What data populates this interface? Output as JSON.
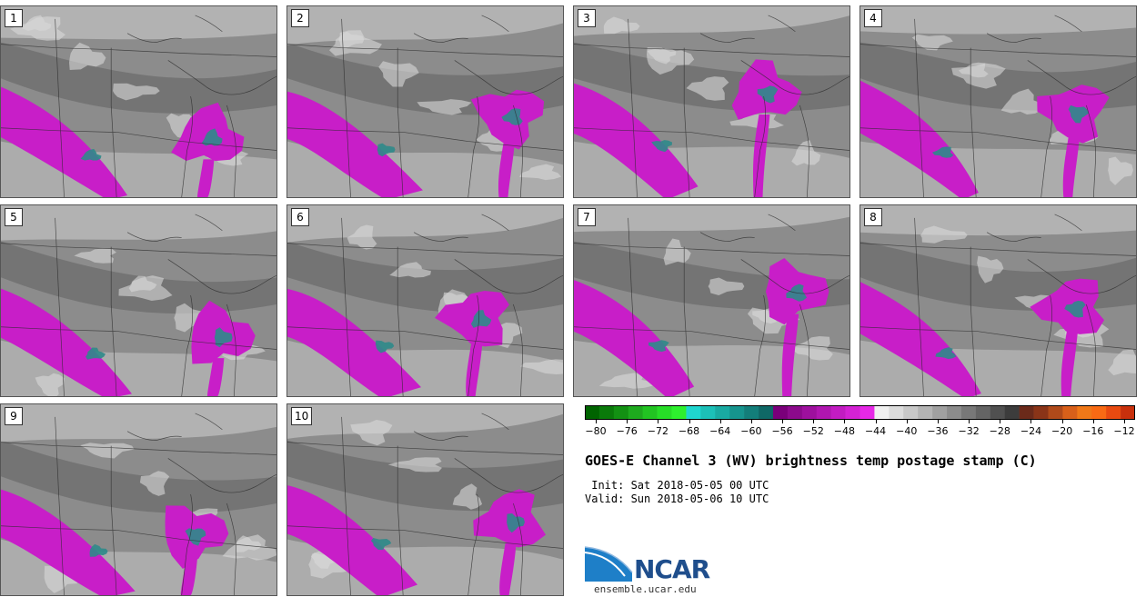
{
  "panels": [
    {
      "label": "1"
    },
    {
      "label": "2"
    },
    {
      "label": "3"
    },
    {
      "label": "4"
    },
    {
      "label": "5"
    },
    {
      "label": "6"
    },
    {
      "label": "7"
    },
    {
      "label": "8"
    },
    {
      "label": "9"
    },
    {
      "label": "10"
    }
  ],
  "colorbar": {
    "ticks": [
      "−80",
      "−76",
      "−72",
      "−68",
      "−64",
      "−60",
      "−56",
      "−52",
      "−48",
      "−44",
      "−40",
      "−36",
      "−32",
      "−28",
      "−24",
      "−20",
      "−16",
      "−12"
    ],
    "colors": [
      "#006400",
      "#0a7a0a",
      "#139113",
      "#1eaa1e",
      "#22c422",
      "#27dd27",
      "#2ef02e",
      "#1fd6cf",
      "#1cc0b8",
      "#19aaa2",
      "#16948e",
      "#137e7a",
      "#0f6866",
      "#7a007a",
      "#8c0a8c",
      "#9e109e",
      "#b016b0",
      "#c21cc2",
      "#d422d4",
      "#e628e6",
      "#f0f0f0",
      "#dcdcdc",
      "#c8c8c8",
      "#b4b4b4",
      "#a0a0a0",
      "#8c8c8c",
      "#787878",
      "#646464",
      "#505050",
      "#3c3c3c",
      "#6b2a1a",
      "#8a3418",
      "#b04a1a",
      "#d8601a",
      "#f07818",
      "#f86a14",
      "#e84a10",
      "#c8300c"
    ]
  },
  "title": "GOES-E Channel 3 (WV) brightness temp postage stamp (C)",
  "init": " Init: Sat 2018-05-05 00 UTC",
  "valid": "Valid: Sun 2018-05-06 10 UTC",
  "logo": {
    "text": "NCAR",
    "url": "ensemble.ucar.edu",
    "color": "#1f4e8c",
    "accent": "#1e7fc8"
  },
  "map_colors": {
    "gray_dark": "#6e6e6e",
    "gray_mid": "#8c8c8c",
    "gray_light": "#b9b9b9",
    "gray_pale": "#d9d9d9",
    "magenta": "#c81ec8",
    "teal": "#2e8a8a"
  }
}
